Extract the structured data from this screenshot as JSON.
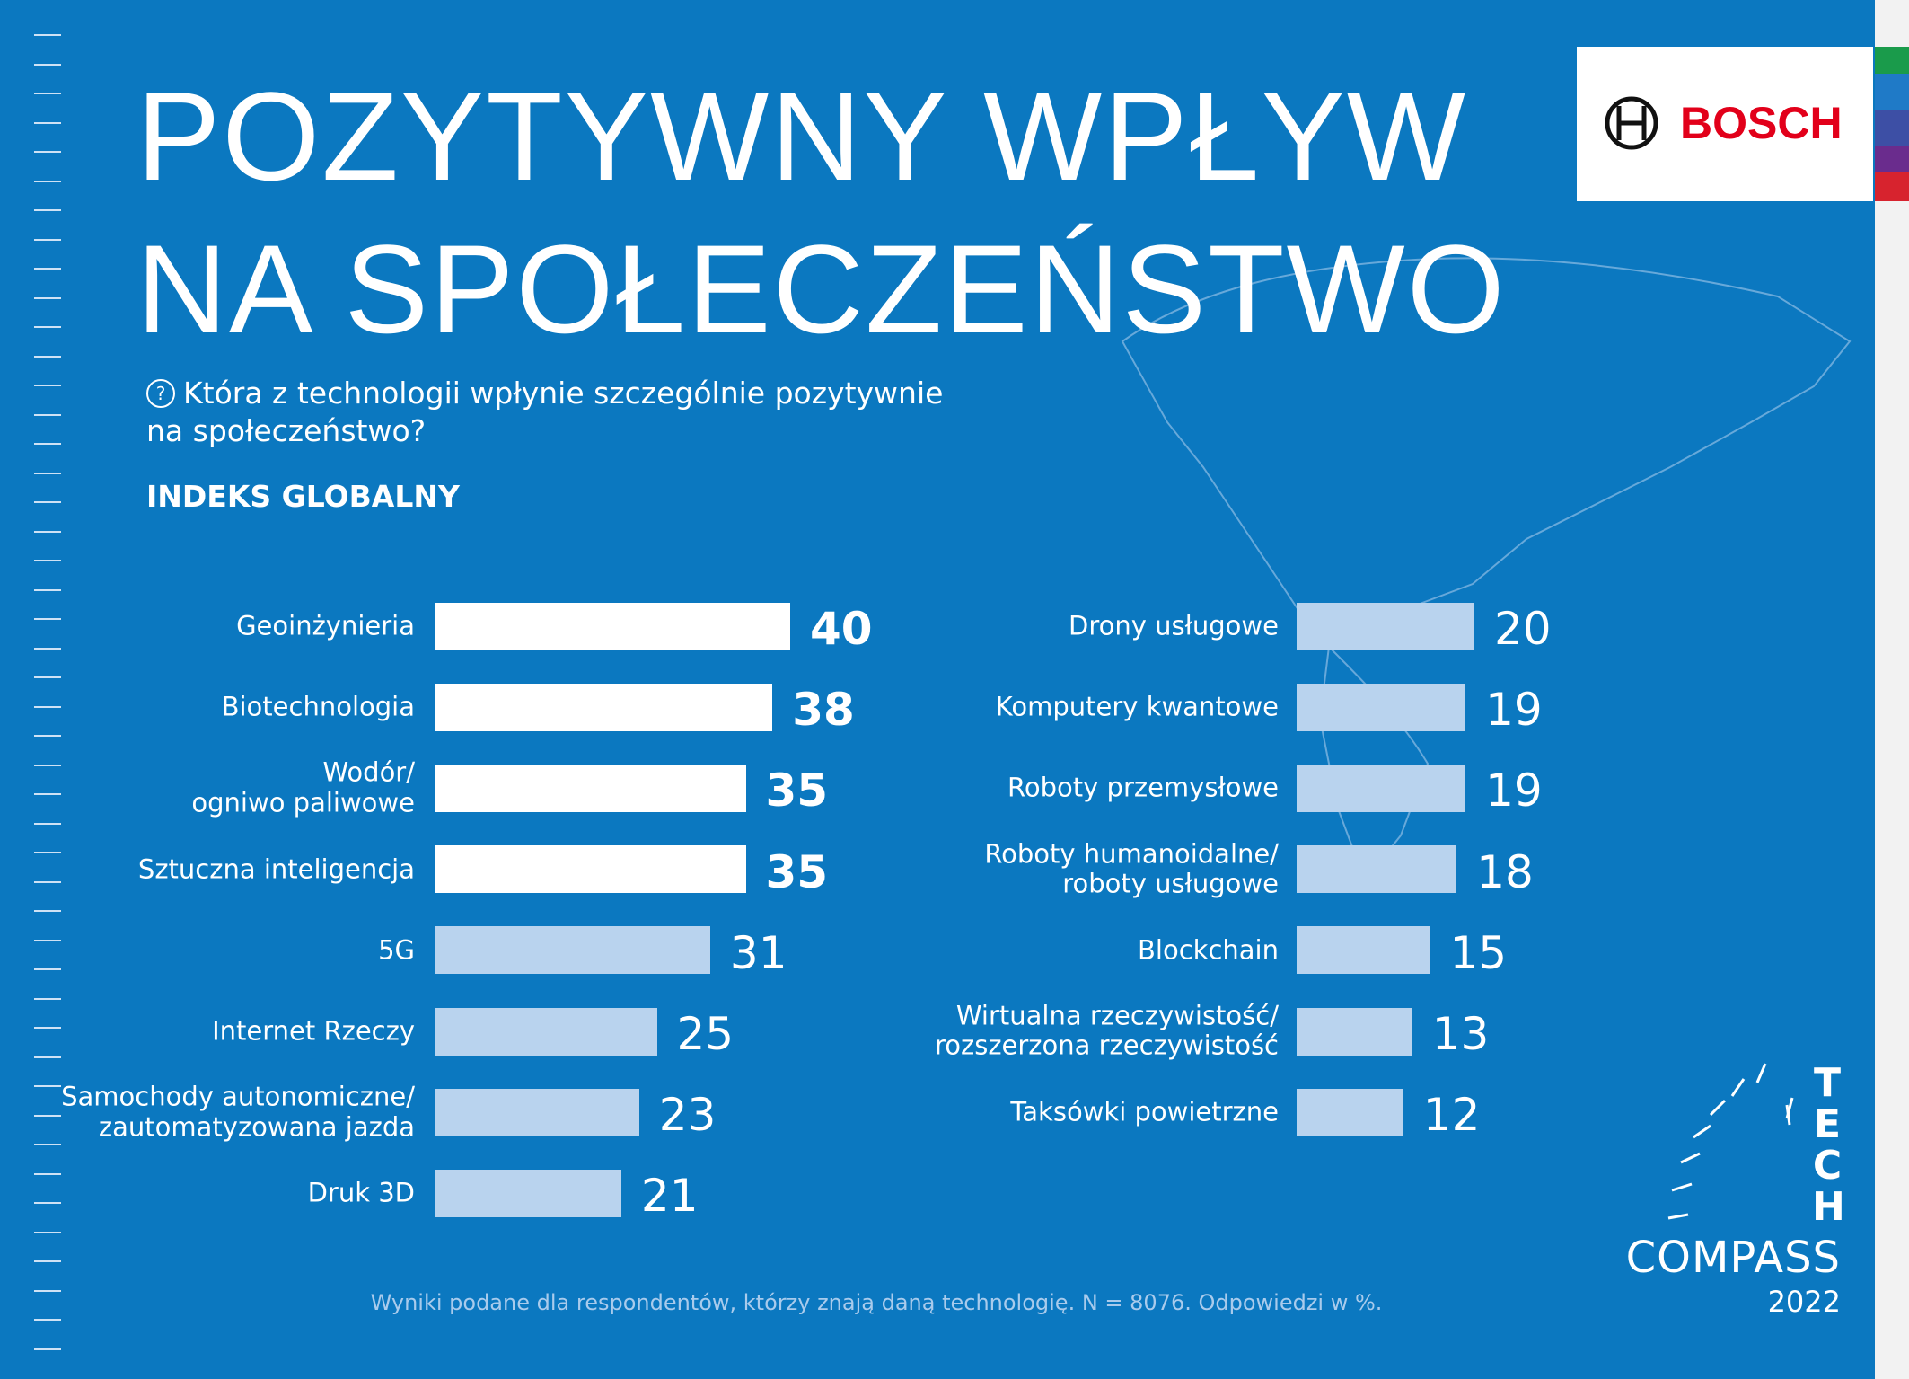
{
  "header": {
    "title": [
      "POZYTYWNY WPŁYW",
      "NA SPOŁECZEŃSTWO"
    ],
    "question_mark": "?",
    "question": [
      "Która z technologii wpłynie szczególnie pozytywnie",
      "na społeczeństwo?"
    ],
    "index_label": "INDEKS GLOBALNY"
  },
  "brand": {
    "logo": "BOSCH",
    "tech": [
      "T",
      "E",
      "C",
      "H"
    ],
    "compass": "COMPASS",
    "year": "2022"
  },
  "footnote": "Wyniki podane  dla respondentów, którzy znają daną technologię. N = 8076. Odpowiedzi w %.",
  "chart_data": [
    {
      "type": "bar",
      "orientation": "horizontal",
      "categories": [
        "Geoinżynieria",
        "Biotechnologia",
        "Wodór/\nogniwo paliwowe",
        "Sztuczna inteligencja",
        "5G",
        "Internet Rzeczy",
        "Samochody autonomiczne/\nzautomatyzowana jazda",
        "Druk 3D"
      ],
      "values": [
        40,
        38,
        35,
        35,
        31,
        25,
        23,
        21
      ],
      "colors": [
        "#ffffff",
        "#ffffff",
        "#ffffff",
        "#ffffff",
        "#b9d3ee",
        "#b9d3ee",
        "#b9d3ee",
        "#b9d3ee"
      ]
    },
    {
      "type": "bar",
      "orientation": "horizontal",
      "categories": [
        "Drony usługowe",
        "Komputery kwantowe",
        "Roboty przemysłowe",
        "Roboty humanoidalne/\nroboty usługowe",
        "Blockchain",
        "Wirtualna rzeczywistość/\nrozszerzona rzeczywistość",
        "Taksówki powietrzne"
      ],
      "values": [
        20,
        19,
        19,
        18,
        15,
        13,
        12
      ],
      "colors": [
        "#b9d3ee",
        "#b9d3ee",
        "#b9d3ee",
        "#b9d3ee",
        "#b9d3ee",
        "#b9d3ee",
        "#b9d3ee"
      ]
    }
  ]
}
